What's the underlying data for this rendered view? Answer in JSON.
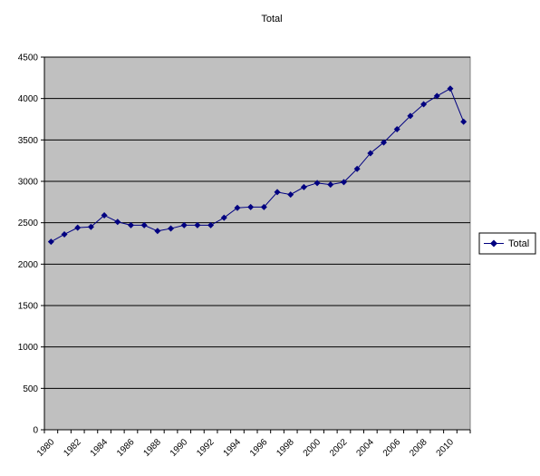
{
  "chart_data": {
    "type": "line",
    "title": "Total",
    "xlabel": "",
    "ylabel": "",
    "ylim": [
      0,
      4500
    ],
    "yticks": [
      0,
      500,
      1000,
      1500,
      2000,
      2500,
      3000,
      3500,
      4000,
      4500
    ],
    "x": [
      1980,
      1981,
      1982,
      1983,
      1984,
      1985,
      1986,
      1987,
      1988,
      1989,
      1990,
      1991,
      1992,
      1993,
      1994,
      1995,
      1996,
      1997,
      1998,
      1999,
      2000,
      2001,
      2002,
      2003,
      2004,
      2005,
      2006,
      2007,
      2008,
      2009,
      2010,
      2011
    ],
    "xtick_labels": [
      "1980",
      "1982",
      "1984",
      "1986",
      "1988",
      "1990",
      "1992",
      "1994",
      "1996",
      "1998",
      "2000",
      "2002",
      "2004",
      "2006",
      "2008",
      "2010"
    ],
    "series": [
      {
        "name": "Total",
        "values": [
          2270,
          2360,
          2440,
          2450,
          2590,
          2510,
          2470,
          2470,
          2400,
          2430,
          2470,
          2470,
          2470,
          2560,
          2680,
          2690,
          2690,
          2870,
          2840,
          2930,
          2980,
          2960,
          2990,
          3150,
          3340,
          3470,
          3630,
          3790,
          3930,
          4030,
          4120,
          3720
        ]
      }
    ],
    "grid": true,
    "legend": "right",
    "colors": {
      "plot_background": "#c0c0c0",
      "gridline": "#000000",
      "series": "#000080"
    }
  }
}
